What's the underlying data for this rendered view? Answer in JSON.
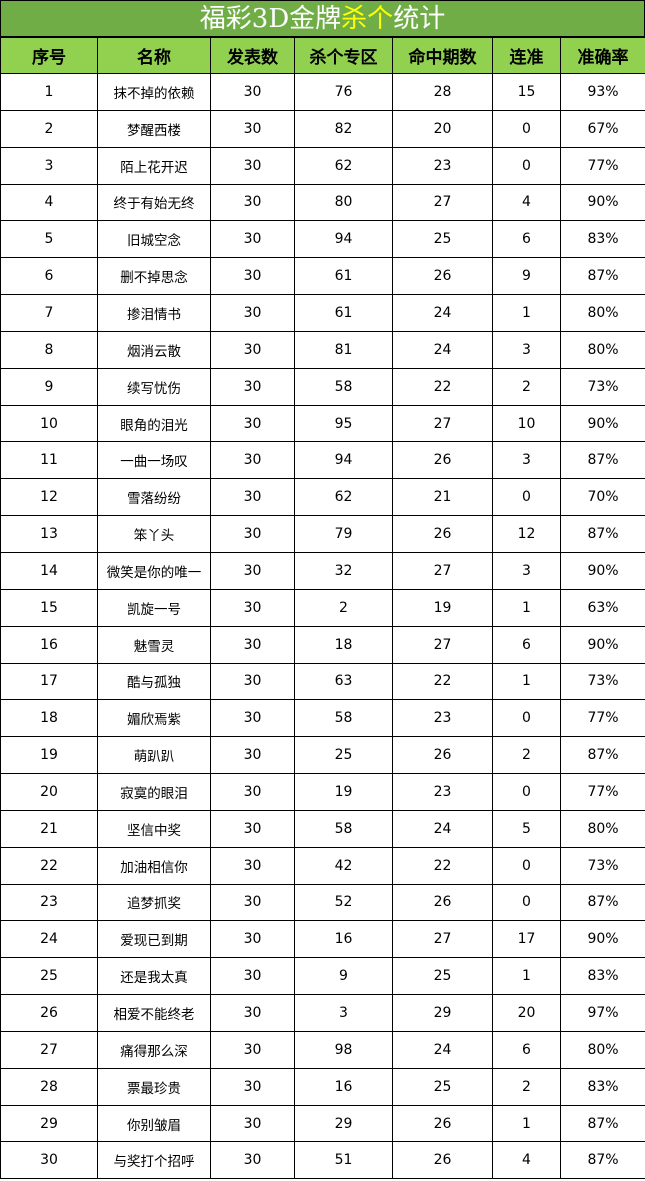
{
  "title": {
    "part1": "福彩3D金牌",
    "highlight": "杀个",
    "part2": "统计",
    "highlight_color": "#ffff00",
    "bg_color": "#70ad47"
  },
  "header_color": "#92d050",
  "columns": [
    "序号",
    "名称",
    "发表数",
    "杀个专区",
    "命中期数",
    "连准",
    "准确率"
  ],
  "rows": [
    [
      "1",
      "抹不掉的依赖",
      "30",
      "76",
      "28",
      "15",
      "93%"
    ],
    [
      "2",
      "梦醒西楼",
      "30",
      "82",
      "20",
      "0",
      "67%"
    ],
    [
      "3",
      "陌上花开迟",
      "30",
      "62",
      "23",
      "0",
      "77%"
    ],
    [
      "4",
      "终于有始无终",
      "30",
      "80",
      "27",
      "4",
      "90%"
    ],
    [
      "5",
      "旧城空念",
      "30",
      "94",
      "25",
      "6",
      "83%"
    ],
    [
      "6",
      "删不掉思念",
      "30",
      "61",
      "26",
      "9",
      "87%"
    ],
    [
      "7",
      "掺泪情书",
      "30",
      "61",
      "24",
      "1",
      "80%"
    ],
    [
      "8",
      "烟消云散",
      "30",
      "81",
      "24",
      "3",
      "80%"
    ],
    [
      "9",
      "续写忧伤",
      "30",
      "58",
      "22",
      "2",
      "73%"
    ],
    [
      "10",
      "眼角的泪光",
      "30",
      "95",
      "27",
      "10",
      "90%"
    ],
    [
      "11",
      "一曲一场叹",
      "30",
      "94",
      "26",
      "3",
      "87%"
    ],
    [
      "12",
      "雪落纷纷",
      "30",
      "62",
      "21",
      "0",
      "70%"
    ],
    [
      "13",
      "笨丫头",
      "30",
      "79",
      "26",
      "12",
      "87%"
    ],
    [
      "14",
      "微笑是你的唯一",
      "30",
      "32",
      "27",
      "3",
      "90%"
    ],
    [
      "15",
      "凯旋一号",
      "30",
      "2",
      "19",
      "1",
      "63%"
    ],
    [
      "16",
      "魅雪灵",
      "30",
      "18",
      "27",
      "6",
      "90%"
    ],
    [
      "17",
      "酷与孤独",
      "30",
      "63",
      "22",
      "1",
      "73%"
    ],
    [
      "18",
      "媚欣焉紫",
      "30",
      "58",
      "23",
      "0",
      "77%"
    ],
    [
      "19",
      "萌趴趴",
      "30",
      "25",
      "26",
      "2",
      "87%"
    ],
    [
      "20",
      "寂寞的眼泪",
      "30",
      "19",
      "23",
      "0",
      "77%"
    ],
    [
      "21",
      "坚信中奖",
      "30",
      "58",
      "24",
      "5",
      "80%"
    ],
    [
      "22",
      "加油相信你",
      "30",
      "42",
      "22",
      "0",
      "73%"
    ],
    [
      "23",
      "追梦抓奖",
      "30",
      "52",
      "26",
      "0",
      "87%"
    ],
    [
      "24",
      "爱现已到期",
      "30",
      "16",
      "27",
      "17",
      "90%"
    ],
    [
      "25",
      "还是我太真",
      "30",
      "9",
      "25",
      "1",
      "83%"
    ],
    [
      "26",
      "相爱不能终老",
      "30",
      "3",
      "29",
      "20",
      "97%"
    ],
    [
      "27",
      "痛得那么深",
      "30",
      "98",
      "24",
      "6",
      "80%"
    ],
    [
      "28",
      "票最珍贵",
      "30",
      "16",
      "25",
      "2",
      "83%"
    ],
    [
      "29",
      "你别皱眉",
      "30",
      "29",
      "26",
      "1",
      "87%"
    ],
    [
      "30",
      "与奖打个招呼",
      "30",
      "51",
      "26",
      "4",
      "87%"
    ]
  ]
}
